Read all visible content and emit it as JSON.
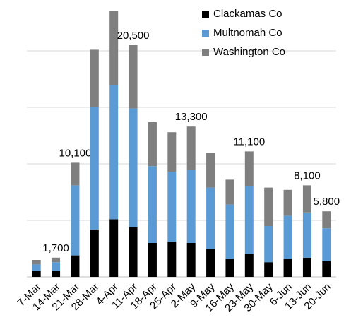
{
  "chart_data": {
    "type": "stacked_bar",
    "categories": [
      "7-Mar",
      "14-Mar",
      "21-Mar",
      "28-Mar",
      "4-Apr",
      "11-Apr",
      "18-Apr",
      "25-Apr",
      "2-May",
      "9-May",
      "16-May",
      "23-May",
      "30-May",
      "6-Jun",
      "13-Jun",
      "20-Jun"
    ],
    "series": [
      {
        "name": "Clackamas Co",
        "color": "#000000",
        "values": [
          500,
          500,
          1900,
          4200,
          5100,
          4400,
          3000,
          3100,
          3000,
          2500,
          1600,
          2000,
          1300,
          1600,
          1700,
          1400
        ]
      },
      {
        "name": "Multnomah Co",
        "color": "#5b9bd5",
        "values": [
          600,
          800,
          6200,
          10800,
          11900,
          10500,
          6800,
          6200,
          6500,
          5400,
          4800,
          6000,
          3200,
          3800,
          4000,
          2900
        ]
      },
      {
        "name": "Washington Co",
        "color": "#7f7f7f",
        "values": [
          400,
          400,
          2000,
          5100,
          6500,
          5600,
          3900,
          3500,
          3800,
          3100,
          2200,
          3100,
          3400,
          2300,
          2400,
          1500
        ]
      }
    ],
    "total_labels": [
      null,
      "1,700",
      "10,100",
      null,
      null,
      "20,500",
      null,
      null,
      "13,300",
      null,
      null,
      "11,100",
      null,
      null,
      "8,100",
      "5,800"
    ],
    "ylim": [
      0,
      24000
    ],
    "yticks": [
      0,
      5000,
      10000,
      15000,
      20000
    ],
    "grid": true,
    "legend": "top-right"
  }
}
